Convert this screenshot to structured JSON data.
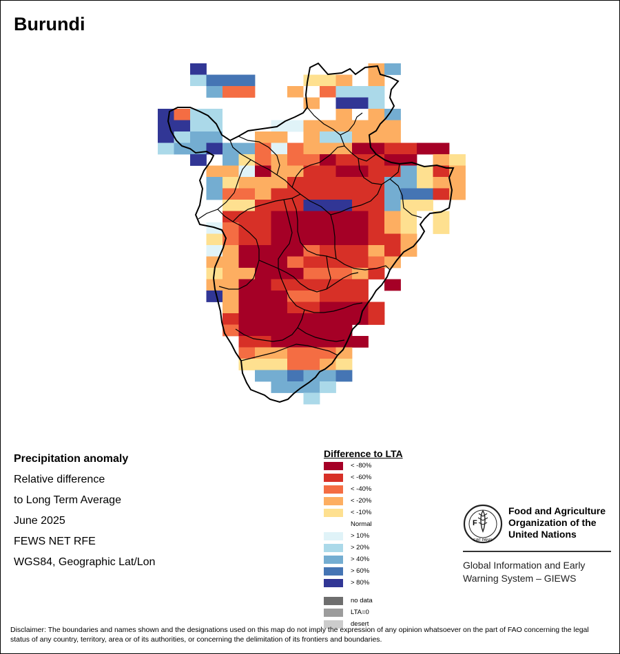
{
  "map": {
    "title": "Burundi",
    "grid_rows": [
      {
        "row": 0,
        "cells": "..k..........fc...."
      },
      {
        "row": 1,
        "cells": "..dbbb...eef.f....."
      },
      {
        "row": 2,
        "cells": "..0cgg..f0gddd....."
      },
      {
        "row": 3,
        "cells": "......0.0f0kkd....."
      },
      {
        "row": 4,
        "cells": "kgdd0......f0fc...."
      },
      {
        "row": 5,
        "cells": "kkdd0..jjffffff...."
      },
      {
        "row": 6,
        "cells": "kdcc0.ff.fddfff...."
      },
      {
        "row": 7,
        "cells": "dcckccgjgfffiihhii."
      },
      {
        "row": 8,
        "cells": "..k.cegfggihhhii.fe"
      },
      {
        "row": 9,
        "cells": "...ffjiffhhiihhcehf"
      },
      {
        "row": 10,
        "cells": "...cefffhhhhhhcceff"
      },
      {
        "row": 11,
        "cells": "...cggfhhhhhhhcbbhf"
      },
      {
        "row": 12,
        "cells": "....eehhhkkkhhcee.."
      },
      {
        "row": 13,
        "cells": "....hhhiiiiiihfe0e."
      },
      {
        "row": 14,
        "cells": "...jghhiiiiiihfe0e."
      },
      {
        "row": 15,
        "cells": "...eghhiiiiiihhf..."
      },
      {
        "row": 16,
        "cells": "...jfiiiighhhfhf..."
      },
      {
        "row": 17,
        "cells": "...ffiiighhhhgf...."
      },
      {
        "row": 18,
        "cells": "...effiiigggfh....."
      },
      {
        "row": 19,
        "cells": "...ffiihhhhhh.i...."
      },
      {
        "row": 20,
        "cells": "...kfiiigghhh......"
      },
      {
        "row": 21,
        "cells": "....fiiihhiiih....."
      },
      {
        "row": 22,
        "cells": "....hiiiiiiiih....."
      },
      {
        "row": 23,
        "cells": "....giiiiiii......."
      },
      {
        "row": 24,
        "cells": ".....hhiiiiii......"
      },
      {
        "row": 25,
        "cells": ".....gffgggf......."
      },
      {
        "row": 26,
        "cells": ".....eeeggfe......."
      },
      {
        "row": 27,
        "cells": "......ccbccb......."
      },
      {
        "row": 28,
        "cells": ".......cccd........"
      },
      {
        "row": 29,
        "cells": ".........d........."
      }
    ]
  },
  "info": {
    "heading": "Precipitation anomaly",
    "line1": "Relative difference",
    "line2": "to Long Term Average",
    "period": "June 2025",
    "source": "FEWS NET RFE",
    "projection": "WGS84, Geographic Lat/Lon"
  },
  "legend": {
    "title": "Difference to LTA",
    "classes": [
      {
        "code": "i",
        "label": "< -80%",
        "color": "#a50026"
      },
      {
        "code": "h",
        "label": "< -60%",
        "color": "#d73027"
      },
      {
        "code": "g",
        "label": "< -40%",
        "color": "#f46d43"
      },
      {
        "code": "f",
        "label": "< -20%",
        "color": "#fdae61"
      },
      {
        "code": "e",
        "label": "< -10%",
        "color": "#fee090"
      },
      {
        "code": "0",
        "label": "Normal",
        "color": "#ffffff"
      },
      {
        "code": "j",
        "label": "> 10%",
        "color": "#e0f3f8"
      },
      {
        "code": "d",
        "label": "> 20%",
        "color": "#abd9e9"
      },
      {
        "code": "c",
        "label": "> 40%",
        "color": "#74add1"
      },
      {
        "code": "b",
        "label": "> 60%",
        "color": "#4575b4"
      },
      {
        "code": "k",
        "label": "> 80%",
        "color": "#313695"
      }
    ],
    "special": [
      {
        "label": "no data",
        "color": "#6e6e6e"
      },
      {
        "label": "LTA=0",
        "color": "#9c9c9c"
      },
      {
        "label": "desert",
        "color": "#cccccc"
      }
    ]
  },
  "organization": {
    "logo_text": "FAO",
    "logo_motto": "FIAT PANIS",
    "name_line1": "Food and Agriculture",
    "name_line2": "Organization of the",
    "name_line3": "United Nations",
    "system_line1": "Global Information and Early",
    "system_line2": "Warning System – GIEWS"
  },
  "disclaimer": "Disclaimer: The boundaries and names shown and the designations used on this map do not imply the expression of any opinion whatsoever on the part of FAO concerning the legal status of any country, territory, area or of its authorities, or concerning the delimitation of its frontiers and boundaries."
}
